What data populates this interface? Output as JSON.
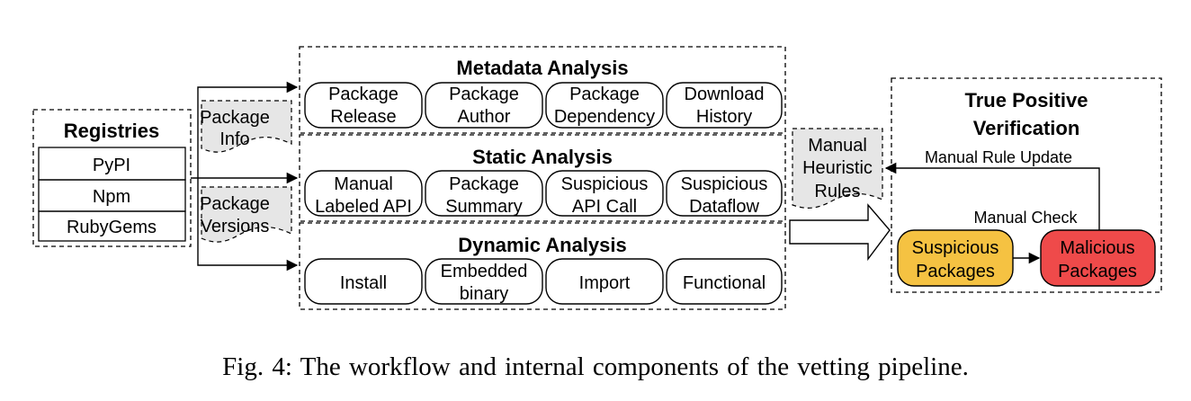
{
  "registries": {
    "title": "Registries",
    "items": [
      "PyPI",
      "Npm",
      "RubyGems"
    ]
  },
  "docs": {
    "package_info": [
      "Package",
      "Info"
    ],
    "package_versions": [
      "Package",
      "Versions"
    ],
    "manual_rules": [
      "Manual",
      "Heuristic",
      "Rules"
    ]
  },
  "metadata": {
    "title": "Metadata Analysis",
    "boxes": [
      [
        "Package",
        "Release"
      ],
      [
        "Package",
        "Author"
      ],
      [
        "Package",
        "Dependency"
      ],
      [
        "Download",
        "History"
      ]
    ]
  },
  "static": {
    "title": "Static Analysis",
    "boxes": [
      [
        "Manual",
        "Labeled API"
      ],
      [
        "Package",
        "Summary"
      ],
      [
        "Suspicious",
        "API Call"
      ],
      [
        "Suspicious",
        "Dataflow"
      ]
    ]
  },
  "dynamic": {
    "title": "Dynamic Analysis",
    "boxes": [
      [
        "Install"
      ],
      [
        "Embedded",
        "binary"
      ],
      [
        "Import"
      ],
      [
        "Functional"
      ]
    ]
  },
  "verification": {
    "title": [
      "True Positive",
      "Verification"
    ],
    "rule_update": "Manual Rule Update",
    "manual_check": "Manual Check",
    "suspicious": [
      "Suspicious",
      "Packages"
    ],
    "malicious": [
      "Malicious",
      "Packages"
    ],
    "colors": {
      "suspicious": "#f5c242",
      "malicious": "#ef4a4a"
    }
  },
  "caption": "Fig. 4: The workflow and internal components of the vetting pipeline."
}
